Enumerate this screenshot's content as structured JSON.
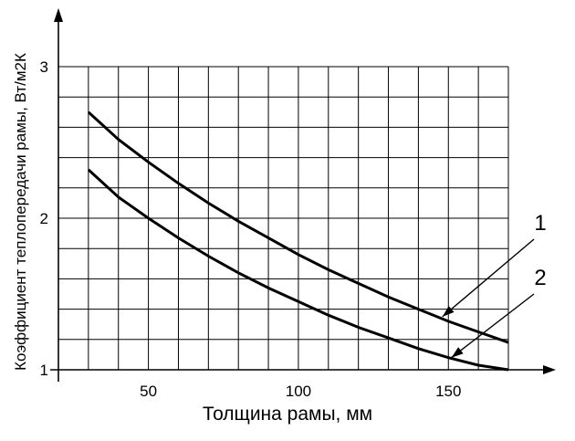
{
  "chart_data": {
    "type": "line",
    "xlabel": "Толщина рамы, мм",
    "ylabel": "Коэффициент теплопередачи рамы, Вт/м2К",
    "xlim": [
      20,
      170
    ],
    "ylim": [
      1,
      3
    ],
    "x_ticks": [
      {
        "value": 50,
        "label": "50"
      },
      {
        "value": 100,
        "label": "100"
      },
      {
        "value": 150,
        "label": "150"
      }
    ],
    "y_ticks": [
      {
        "value": 1,
        "label": "1"
      },
      {
        "value": 2,
        "label": "2"
      },
      {
        "value": 3,
        "label": "3"
      }
    ],
    "grid": true,
    "grid_x_step": 10,
    "grid_y_step": 0.2,
    "series": [
      {
        "name": "1",
        "x": [
          30,
          40,
          50,
          60,
          70,
          80,
          90,
          100,
          110,
          120,
          130,
          140,
          150,
          160,
          170
        ],
        "y": [
          2.7,
          2.52,
          2.37,
          2.23,
          2.1,
          1.98,
          1.87,
          1.76,
          1.66,
          1.57,
          1.48,
          1.4,
          1.32,
          1.25,
          1.18
        ]
      },
      {
        "name": "2",
        "x": [
          30,
          40,
          50,
          60,
          70,
          80,
          90,
          100,
          110,
          120,
          130,
          140,
          150,
          160,
          170
        ],
        "y": [
          2.32,
          2.14,
          2.0,
          1.87,
          1.75,
          1.64,
          1.54,
          1.45,
          1.36,
          1.28,
          1.21,
          1.14,
          1.08,
          1.03,
          1.0
        ]
      }
    ],
    "curve_labels": [
      {
        "text": "1",
        "points_to_x": 148,
        "points_to_y": 1.35
      },
      {
        "text": "2",
        "points_to_x": 151,
        "points_to_y": 1.08
      }
    ]
  }
}
